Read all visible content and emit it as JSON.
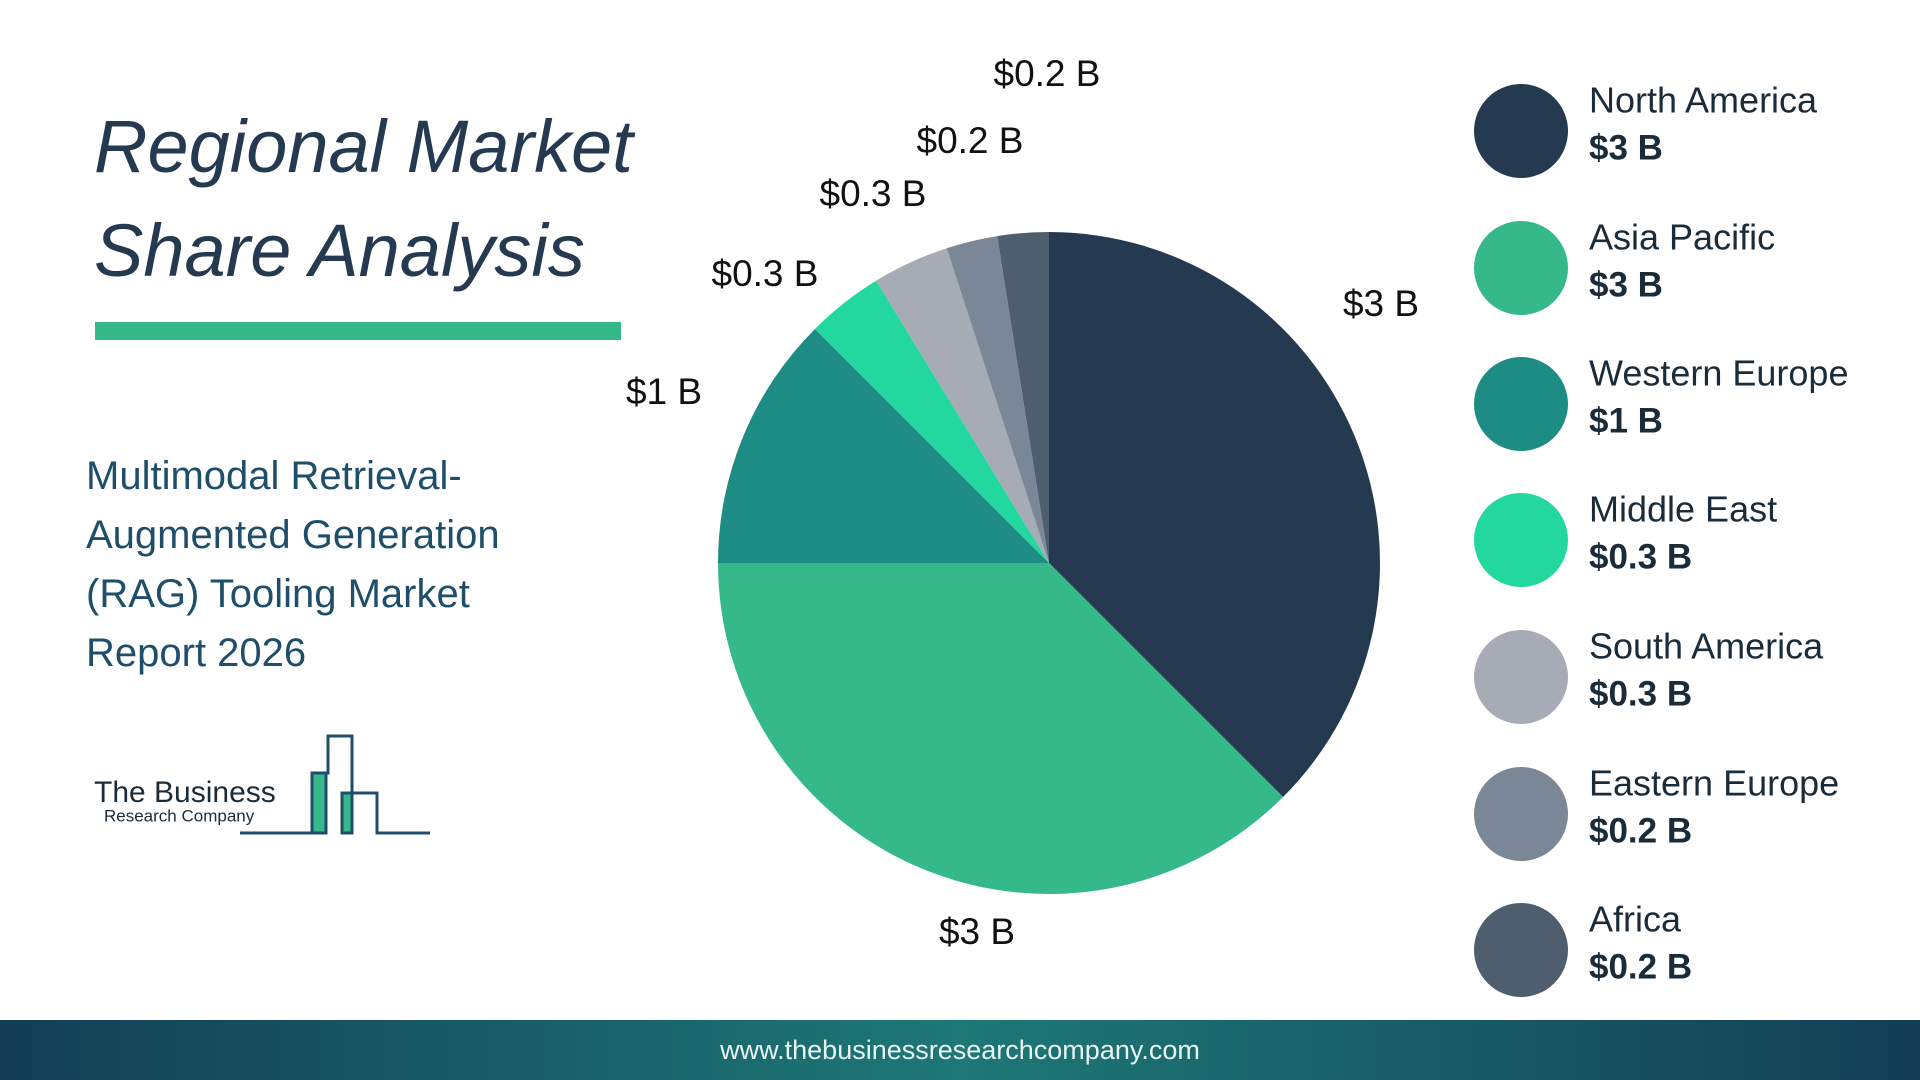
{
  "chart_data": {
    "type": "pie",
    "title": "Regional Market Share Analysis",
    "subtitle": "Multimodal Retrieval-Augmented Generation (RAG) Tooling  Market Report 2026",
    "categories": [
      "North America",
      "Asia Pacific",
      "Western Europe",
      "Middle East",
      "South America",
      "Eastern Europe",
      "Africa"
    ],
    "values": [
      3,
      3,
      1,
      0.3,
      0.3,
      0.2,
      0.2
    ],
    "value_labels": [
      "$3 B",
      "$3 B",
      "$1 B",
      "$0.3 B",
      "$0.3 B",
      "$0.2 B",
      "$0.2 B"
    ],
    "colors": [
      "#253a50",
      "#35b88a",
      "#1d8c84",
      "#22d89e",
      "#a6abb5",
      "#7a8796",
      "#4e5e6e"
    ]
  },
  "logo": {
    "line1": "The Business",
    "line2": "Research Company"
  },
  "footer": {
    "url": "www.thebusinessresearchcompany.com"
  }
}
